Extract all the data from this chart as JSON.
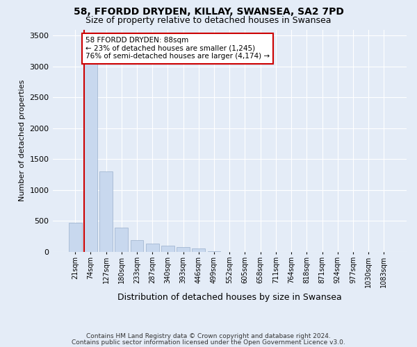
{
  "title1": "58, FFORDD DRYDEN, KILLAY, SWANSEA, SA2 7PD",
  "title2": "Size of property relative to detached houses in Swansea",
  "xlabel": "Distribution of detached houses by size in Swansea",
  "ylabel": "Number of detached properties",
  "footnote1": "Contains HM Land Registry data © Crown copyright and database right 2024.",
  "footnote2": "Contains public sector information licensed under the Open Government Licence v3.0.",
  "bar_color": "#c8d8ee",
  "bar_edge_color": "#9ab0cc",
  "highlight_color": "#cc0000",
  "background_color": "#e4ecf7",
  "grid_color": "#ffffff",
  "categories": [
    "21sqm",
    "74sqm",
    "127sqm",
    "180sqm",
    "233sqm",
    "287sqm",
    "340sqm",
    "393sqm",
    "446sqm",
    "499sqm",
    "552sqm",
    "605sqm",
    "658sqm",
    "711sqm",
    "764sqm",
    "818sqm",
    "871sqm",
    "924sqm",
    "977sqm",
    "1030sqm",
    "1083sqm"
  ],
  "values": [
    470,
    3050,
    1300,
    390,
    195,
    130,
    95,
    75,
    55,
    5,
    0,
    0,
    0,
    0,
    0,
    0,
    0,
    0,
    0,
    0,
    0
  ],
  "ylim": [
    0,
    3600
  ],
  "yticks": [
    0,
    500,
    1000,
    1500,
    2000,
    2500,
    3000,
    3500
  ],
  "property_bin_index": 1,
  "annotation_title": "58 FFORDD DRYDEN: 88sqm",
  "annotation_line1": "← 23% of detached houses are smaller (1,245)",
  "annotation_line2": "76% of semi-detached houses are larger (4,174) →",
  "annotation_box_color": "#ffffff",
  "annotation_border_color": "#cc0000"
}
